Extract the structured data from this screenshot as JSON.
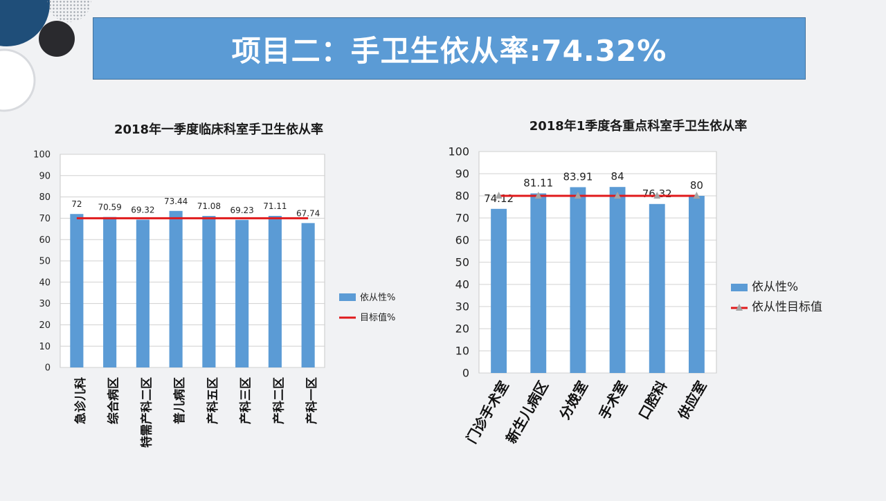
{
  "slide": {
    "title": "项目二：手卫生依从率:74.32%"
  },
  "colors": {
    "bar": "#5b9bd5",
    "target_left": "#e0191b",
    "target_right": "#e0191b",
    "marker": "#a5a5a5",
    "banner": "#5b9bd5"
  },
  "chart_data": [
    {
      "type": "bar",
      "title": "2018年一季度临床科室手卫生依从率",
      "categories": [
        "急诊儿科",
        "综合病区",
        "特需产科二区",
        "普儿病区",
        "产科五区",
        "产科三区",
        "产科二区",
        "产科一区"
      ],
      "series": [
        {
          "name": "依从性%",
          "type": "bar",
          "values": [
            72,
            70.59,
            69.32,
            73.44,
            71.08,
            69.23,
            71.11,
            67.74
          ]
        },
        {
          "name": "目标值%",
          "type": "line",
          "values": [
            70,
            70,
            70,
            70,
            70,
            70,
            70,
            70
          ]
        }
      ],
      "data_labels": [
        "72",
        "70.59",
        "69.32",
        "73.44",
        "71.08",
        "69.23",
        "71.11",
        "67.74"
      ],
      "ylim": [
        0,
        100
      ],
      "yticks": [
        "0",
        "10",
        "20",
        "30",
        "40",
        "50",
        "60",
        "70",
        "80",
        "90",
        "100"
      ],
      "grid": true,
      "legend": "right"
    },
    {
      "type": "bar",
      "title": "2018年1季度各重点科室手卫生依从率",
      "categories": [
        "门诊手术室",
        "新生儿病区",
        "分娩室",
        "手术室",
        "口腔科",
        "供应室"
      ],
      "series": [
        {
          "name": "依从性%",
          "type": "bar",
          "values": [
            74.12,
            81.11,
            83.91,
            84,
            76.32,
            80
          ]
        },
        {
          "name": "依从性目标值",
          "type": "line",
          "values": [
            80,
            80,
            80,
            80,
            80,
            80
          ]
        }
      ],
      "data_labels": [
        "74.12",
        "81.11",
        "83.91",
        "84",
        "76.32",
        "80"
      ],
      "ylim": [
        0,
        100
      ],
      "yticks": [
        "0",
        "10",
        "20",
        "30",
        "40",
        "50",
        "60",
        "70",
        "80",
        "90",
        "100"
      ],
      "grid": true,
      "legend": "right"
    }
  ]
}
